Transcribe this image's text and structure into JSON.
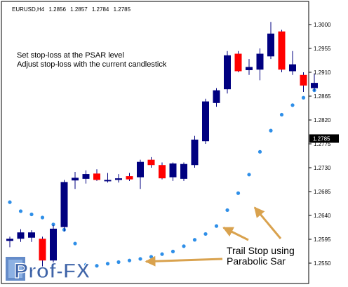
{
  "header": {
    "symbol": "EURUSD,H4",
    "open": "1.2856",
    "high": "1.2857",
    "low": "1.2784",
    "close": "1.2785"
  },
  "annotations": {
    "line1": "Set stop-loss at the PSAR level",
    "line2": "Adjust stop-loss with the current candlestick",
    "trail_line1": "Trail Stop using",
    "trail_line2": "Parabolic Sar"
  },
  "logo": {
    "text": "Prof-FX"
  },
  "colors": {
    "bull": "#000080",
    "bear": "#ff0000",
    "psar": "#2f8fe8",
    "arrow": "#d9a24e",
    "price_tag_bg": "#000000",
    "price_tag_fg": "#ffffff"
  },
  "chart_data": {
    "type": "candlestick",
    "symbol": "EURUSD",
    "timeframe": "H4",
    "current_price": 1.2785,
    "current_price_label": "1.2785",
    "y_ticks": [
      1.3,
      1.2955,
      1.291,
      1.2865,
      1.282,
      1.2775,
      1.273,
      1.2685,
      1.264,
      1.2595,
      1.255
    ],
    "y_tick_labels": [
      "1.3000",
      "1.2955",
      "1.2910",
      "1.2865",
      "1.2820",
      "1.2775",
      "1.2730",
      "1.2685",
      "1.2640",
      "1.2595",
      "1.2550"
    ],
    "ylim": [
      1.2532,
      1.3032
    ],
    "candles": [
      {
        "o": 1.2592,
        "h": 1.26,
        "l": 1.258,
        "c": 1.2596
      },
      {
        "o": 1.2596,
        "h": 1.2614,
        "l": 1.259,
        "c": 1.2608
      },
      {
        "o": 1.2598,
        "h": 1.2612,
        "l": 1.259,
        "c": 1.2608
      },
      {
        "o": 1.2596,
        "h": 1.26,
        "l": 1.254,
        "c": 1.2555
      },
      {
        "o": 1.2555,
        "h": 1.2622,
        "l": 1.2548,
        "c": 1.2615
      },
      {
        "o": 1.2618,
        "h": 1.2707,
        "l": 1.261,
        "c": 1.2703
      },
      {
        "o": 1.2706,
        "h": 1.2722,
        "l": 1.269,
        "c": 1.2711
      },
      {
        "o": 1.2709,
        "h": 1.2725,
        "l": 1.27,
        "c": 1.2718
      },
      {
        "o": 1.2719,
        "h": 1.2727,
        "l": 1.2705,
        "c": 1.2707
      },
      {
        "o": 1.2705,
        "h": 1.272,
        "l": 1.2702,
        "c": 1.2707
      },
      {
        "o": 1.2707,
        "h": 1.2718,
        "l": 1.2702,
        "c": 1.271
      },
      {
        "o": 1.2714,
        "h": 1.272,
        "l": 1.2705,
        "c": 1.2708
      },
      {
        "o": 1.2712,
        "h": 1.2745,
        "l": 1.269,
        "c": 1.2741
      },
      {
        "o": 1.2745,
        "h": 1.275,
        "l": 1.273,
        "c": 1.2735
      },
      {
        "o": 1.2735,
        "h": 1.274,
        "l": 1.2708,
        "c": 1.271
      },
      {
        "o": 1.2712,
        "h": 1.274,
        "l": 1.2705,
        "c": 1.2738
      },
      {
        "o": 1.2709,
        "h": 1.274,
        "l": 1.2705,
        "c": 1.2737
      },
      {
        "o": 1.2735,
        "h": 1.279,
        "l": 1.273,
        "c": 1.2783
      },
      {
        "o": 1.278,
        "h": 1.286,
        "l": 1.2775,
        "c": 1.2855
      },
      {
        "o": 1.2852,
        "h": 1.288,
        "l": 1.2845,
        "c": 1.2876
      },
      {
        "o": 1.2878,
        "h": 1.295,
        "l": 1.287,
        "c": 1.2942
      },
      {
        "o": 1.2945,
        "h": 1.295,
        "l": 1.291,
        "c": 1.2912
      },
      {
        "o": 1.2914,
        "h": 1.2935,
        "l": 1.2905,
        "c": 1.292
      },
      {
        "o": 1.2915,
        "h": 1.2955,
        "l": 1.2895,
        "c": 1.2945
      },
      {
        "o": 1.294,
        "h": 1.3005,
        "l": 1.2935,
        "c": 1.2983
      },
      {
        "o": 1.2987,
        "h": 1.299,
        "l": 1.291,
        "c": 1.2915
      },
      {
        "o": 1.2912,
        "h": 1.295,
        "l": 1.2905,
        "c": 1.2925
      },
      {
        "o": 1.2905,
        "h": 1.291,
        "l": 1.2873,
        "c": 1.2885
      },
      {
        "o": 1.288,
        "h": 1.2908,
        "l": 1.2875,
        "c": 1.289
      }
    ],
    "psar": [
      {
        "i": 0,
        "v": 1.2665
      },
      {
        "i": 1,
        "v": 1.2648
      },
      {
        "i": 2,
        "v": 1.2642
      },
      {
        "i": 3,
        "v": 1.2636
      },
      {
        "i": 4,
        "v": 1.2623
      },
      {
        "i": 5,
        "v": 1.2613
      },
      {
        "i": 6,
        "v": 1.2587
      },
      {
        "i": 7,
        "v": 1.2547
      },
      {
        "i": 8,
        "v": 1.2545
      },
      {
        "i": 9,
        "v": 1.2549
      },
      {
        "i": 10,
        "v": 1.2552
      },
      {
        "i": 11,
        "v": 1.2555
      },
      {
        "i": 12,
        "v": 1.2558
      },
      {
        "i": 13,
        "v": 1.2562
      },
      {
        "i": 14,
        "v": 1.2567
      },
      {
        "i": 15,
        "v": 1.2572
      },
      {
        "i": 16,
        "v": 1.2582
      },
      {
        "i": 17,
        "v": 1.2594
      },
      {
        "i": 18,
        "v": 1.2605
      },
      {
        "i": 19,
        "v": 1.262
      },
      {
        "i": 20,
        "v": 1.265
      },
      {
        "i": 21,
        "v": 1.2682
      },
      {
        "i": 22,
        "v": 1.2717
      },
      {
        "i": 23,
        "v": 1.276
      },
      {
        "i": 24,
        "v": 1.28
      },
      {
        "i": 25,
        "v": 1.283
      },
      {
        "i": 26,
        "v": 1.2848
      },
      {
        "i": 27,
        "v": 1.2862
      },
      {
        "i": 28,
        "v": 1.2876
      }
    ]
  }
}
